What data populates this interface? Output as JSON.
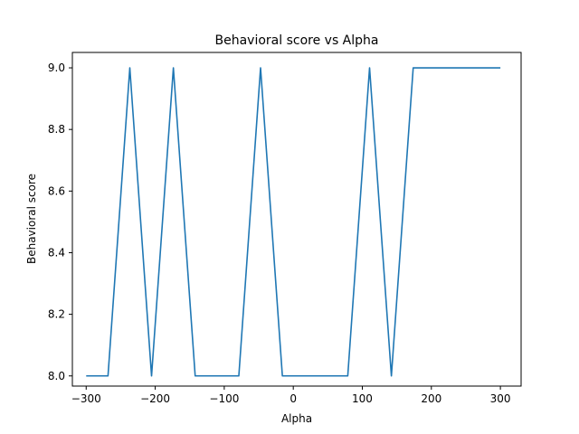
{
  "chart_data": {
    "type": "line",
    "title": "Behavioral score vs Alpha",
    "xlabel": "Alpha",
    "ylabel": "Behavioral score",
    "xlim": [
      -320,
      330
    ],
    "ylim": [
      7.967,
      9.05
    ],
    "xticks": [
      -300,
      -200,
      -100,
      0,
      100,
      200,
      300
    ],
    "xtick_labels": [
      "−300",
      "−200",
      "−100",
      "0",
      "100",
      "200",
      "300"
    ],
    "yticks": [
      8.0,
      8.2,
      8.4,
      8.6,
      8.8,
      9.0
    ],
    "ytick_labels": [
      "8.0",
      "8.2",
      "8.4",
      "8.6",
      "8.8",
      "9.0"
    ],
    "grid": false,
    "series": [
      {
        "color": "#1f77b4",
        "x": [
          -300,
          -268.4,
          -236.8,
          -205.3,
          -173.7,
          -142.1,
          -110.5,
          -78.9,
          -47.4,
          -15.8,
          15.8,
          47.4,
          78.9,
          110.5,
          142.1,
          173.7,
          205.3,
          236.8,
          268.4,
          300
        ],
        "y": [
          8,
          8,
          9,
          8,
          9,
          8,
          8,
          8,
          9,
          8,
          8,
          8,
          8,
          9,
          8,
          9,
          9,
          9,
          9,
          9
        ]
      }
    ]
  }
}
